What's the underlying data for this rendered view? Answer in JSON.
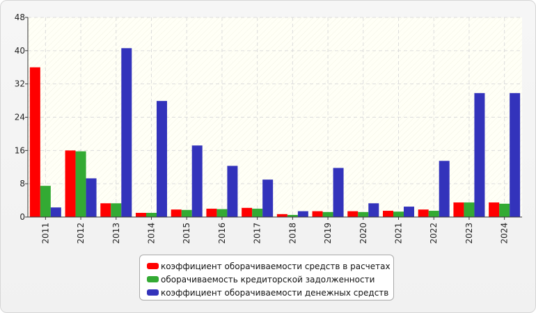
{
  "chart_data": {
    "type": "bar",
    "categories": [
      "2011",
      "2012",
      "2013",
      "2014",
      "2015",
      "2016",
      "2017",
      "2018",
      "2019",
      "2020",
      "2021",
      "2022",
      "2023",
      "2024"
    ],
    "series": [
      {
        "name": "коэффициент оборачиваемости средств в расчетах",
        "color": "#ff0000",
        "values": [
          36,
          16,
          3.3,
          1,
          1.8,
          2,
          2.2,
          0.7,
          1.4,
          1.4,
          1.5,
          1.8,
          3.5,
          3.5
        ]
      },
      {
        "name": "оборачиваемость кредиторской задолженности",
        "color": "#33aa33",
        "values": [
          7.5,
          15.8,
          3.3,
          1,
          1.7,
          1.9,
          2,
          0.5,
          1.2,
          1.2,
          1.3,
          1.5,
          3.5,
          3.2
        ]
      },
      {
        "name": "коэффициент оборачиваемости денежных средств",
        "color": "#3333bb",
        "values": [
          2.3,
          9.3,
          40.6,
          27.9,
          17.2,
          12.3,
          9,
          1.4,
          11.8,
          3.3,
          2.5,
          13.5,
          29.8,
          29.8
        ]
      }
    ],
    "ylim": [
      0,
      48
    ],
    "yticks": [
      0,
      8,
      16,
      24,
      32,
      40,
      48
    ],
    "grid": true,
    "legend_position": "bottom-center"
  }
}
